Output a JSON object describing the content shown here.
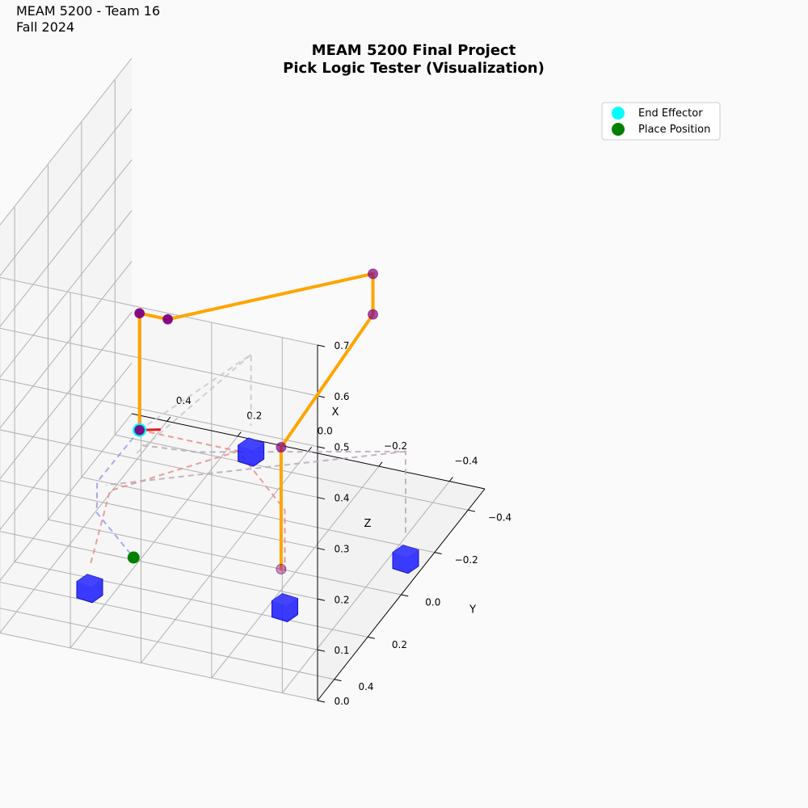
{
  "figure": {
    "corner_text": [
      "MEAM 5200 - Team 16",
      "Fall 2024"
    ],
    "title_lines": [
      "MEAM 5200 Final Project",
      "Pick Logic Tester (Visualization)"
    ]
  },
  "chart_data": {
    "type": "scatter",
    "projection": "3d",
    "title": "MEAM 5200 Final Project\nPick Logic Tester (Visualization)",
    "xlabel": "X",
    "ylabel": "Y",
    "zlabel": "Z",
    "xlim": [
      -0.5,
      0.5
    ],
    "ylim": [
      -0.5,
      0.5
    ],
    "zlim": [
      0.0,
      0.7
    ],
    "xticks": [
      -0.4,
      -0.2,
      0.0,
      0.2,
      0.4
    ],
    "yticks": [
      -0.4,
      -0.2,
      0.0,
      0.2,
      0.4
    ],
    "zticks": [
      0.0,
      0.1,
      0.2,
      0.3,
      0.4,
      0.5,
      0.6,
      0.7
    ],
    "xtick_labels": [
      "−0.4",
      "−0.2",
      "0.0",
      "0.2",
      "0.4"
    ],
    "ytick_labels": [
      "−0.4",
      "−0.2",
      "0.0",
      "0.2",
      "0.4"
    ],
    "ztick_labels": [
      "0.0",
      "0.1",
      "0.2",
      "0.3",
      "0.4",
      "0.5",
      "0.6",
      "0.7"
    ],
    "grid": true,
    "legend_position": "top-right",
    "legend": [
      {
        "label": "End Effector",
        "color": "#00ffff"
      },
      {
        "label": "Place Position",
        "color": "#008000"
      }
    ],
    "arm": {
      "color": "#ffa500",
      "joint_color": "#800080",
      "joints": [
        {
          "x": -0.16,
          "y": 0.0,
          "z": 0.0
        },
        {
          "x": -0.16,
          "y": 0.0,
          "z": 0.24
        },
        {
          "x": -0.42,
          "y": 0.0,
          "z": 0.54
        },
        {
          "x": -0.42,
          "y": 0.0,
          "z": 0.62
        },
        {
          "x": 0.0,
          "y": 0.34,
          "z": 0.61
        },
        {
          "x": 0.08,
          "y": 0.34,
          "z": 0.61
        },
        {
          "x": 0.08,
          "y": 0.34,
          "z": 0.38
        }
      ]
    },
    "end_effector": {
      "x": 0.08,
      "y": 0.34,
      "z": 0.38,
      "color": "#00ffff"
    },
    "gripper_axis": {
      "from": {
        "x": 0.08,
        "y": 0.34,
        "z": 0.38
      },
      "to": {
        "x": 0.02,
        "y": 0.34,
        "z": 0.39
      },
      "color": "#e41a1c"
    },
    "place_position": {
      "x": 0.22,
      "y": 0.08,
      "z": 0.0,
      "color": "#008000"
    },
    "blocks": [
      {
        "x": -0.47,
        "y": -0.09,
        "z": 0.0
      },
      {
        "x": -0.27,
        "y": 0.21,
        "z": 0.0
      },
      {
        "x": 0.11,
        "y": -0.39,
        "z": 0.0
      },
      {
        "x": 0.24,
        "y": 0.3,
        "z": 0.0
      }
    ],
    "block_color": "#2020ff",
    "paths": [
      {
        "color": "#e88d8d",
        "points": [
          {
            "x": 0.08,
            "y": 0.34,
            "z": 0.38
          },
          {
            "x": -0.2,
            "y": 0.34,
            "z": 0.38
          },
          {
            "x": -0.27,
            "y": 0.21,
            "z": 0.22
          },
          {
            "x": -0.27,
            "y": 0.21,
            "z": 0.1
          }
        ]
      },
      {
        "color": "#e88d8d",
        "points": [
          {
            "x": -0.2,
            "y": 0.34,
            "z": 0.38
          },
          {
            "x": 0.23,
            "y": 0.2,
            "z": 0.18
          },
          {
            "x": 0.24,
            "y": 0.3,
            "z": 0.07
          }
        ]
      },
      {
        "color": "#9a9ae6",
        "points": [
          {
            "x": 0.08,
            "y": 0.34,
            "z": 0.38
          },
          {
            "x": 0.2,
            "y": 0.34,
            "z": 0.26
          },
          {
            "x": 0.22,
            "y": 0.3,
            "z": 0.18
          },
          {
            "x": 0.22,
            "y": 0.08,
            "z": 0.0
          }
        ]
      },
      {
        "color": "#b8a8b8",
        "points": [
          {
            "x": -0.47,
            "y": -0.09,
            "z": 0.08
          },
          {
            "x": -0.47,
            "y": -0.09,
            "z": 0.24
          },
          {
            "x": -0.1,
            "y": 0.38,
            "z": 0.38
          },
          {
            "x": 0.05,
            "y": 0.4,
            "z": 0.38
          }
        ]
      },
      {
        "color": "#b8a8b8",
        "points": [
          {
            "x": -0.47,
            "y": -0.09,
            "z": 0.24
          },
          {
            "x": 0.25,
            "y": 0.18,
            "z": 0.18
          }
        ]
      },
      {
        "color": "#c8c8c8",
        "points": [
          {
            "x": 0.08,
            "y": 0.34,
            "z": 0.38
          },
          {
            "x": 0.11,
            "y": -0.39,
            "z": 0.22
          },
          {
            "x": 0.11,
            "y": -0.39,
            "z": 0.08
          }
        ]
      },
      {
        "color": "#c8c8c8",
        "points": [
          {
            "x": 0.11,
            "y": -0.39,
            "z": 0.22
          },
          {
            "x": 0.22,
            "y": 0.08,
            "z": 0.2
          }
        ]
      }
    ]
  }
}
